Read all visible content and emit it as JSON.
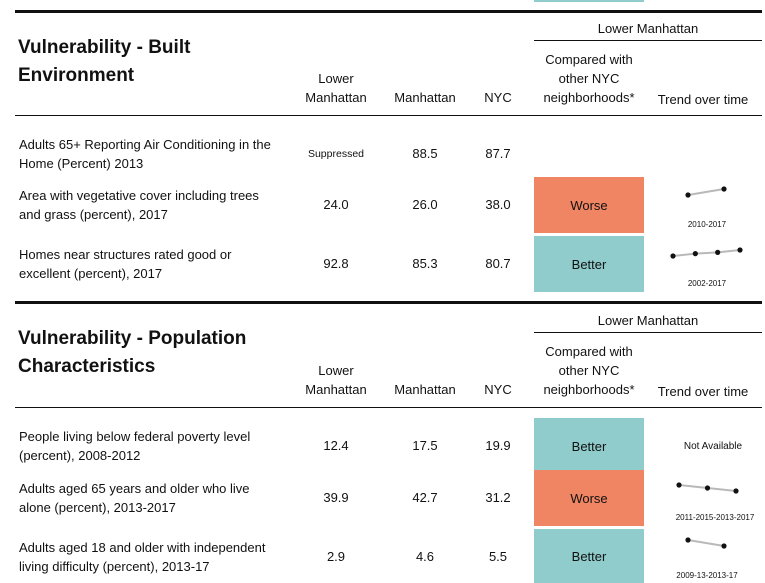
{
  "colors": {
    "worse": "#ef8563",
    "better": "#8fcccb",
    "trend_line": "#b9b9b9",
    "trend_point": "#111111"
  },
  "sections": [
    {
      "title": "Vulnerability - Built Environment",
      "title_line1": "Vulnerability - Built",
      "title_line2": "Environment",
      "group_header": "Lower Manhattan",
      "col_lower": "Lower Manhattan",
      "col_lower_l1": "Lower",
      "col_lower_l2": "Manhattan",
      "col_manhattan": "Manhattan",
      "col_nyc": "NYC",
      "col_compare": "Compared with other NYC neighborhoods*",
      "col_compare_l1": "Compared with",
      "col_compare_l2": "other NYC",
      "col_compare_l3": "neighborhoods*",
      "col_trend": "Trend over time",
      "rows": [
        {
          "label": "Adults 65+ Reporting Air Conditioning in the Home (Percent) 2013",
          "label_l1": "Adults 65+ Reporting Air Conditioning in the",
          "label_l2": "Home (Percent) 2013",
          "lower": "Suppressed",
          "manhattan": "88.5",
          "nyc": "87.7",
          "compare": "",
          "trend_label": "",
          "trend_points": []
        },
        {
          "label": "Area with vegetative cover including trees and grass (percent), 2017",
          "label_l1": "Area with vegetative cover including trees",
          "label_l2": "and grass (percent), 2017",
          "lower": "24.0",
          "manhattan": "26.0",
          "nyc": "38.0",
          "compare": "Worse",
          "trend_label": "2010-2017",
          "trend_points": [
            23.5,
            24.0
          ]
        },
        {
          "label": "Homes near structures rated good or excellent (percent), 2017",
          "label_l1": "Homes near structures rated good or",
          "label_l2": "excellent (percent), 2017",
          "lower": "92.8",
          "manhattan": "85.3",
          "nyc": "80.7",
          "compare": "Better",
          "trend_label": "2002-2017",
          "trend_points": [
            92.3,
            92.5,
            92.6,
            92.8
          ]
        }
      ]
    },
    {
      "title": "Vulnerability - Population Characteristics",
      "title_line1": "Vulnerability - Population",
      "title_line2": "Characteristics",
      "group_header": "Lower Manhattan",
      "col_lower": "Lower Manhattan",
      "col_lower_l1": "Lower",
      "col_lower_l2": "Manhattan",
      "col_manhattan": "Manhattan",
      "col_nyc": "NYC",
      "col_compare": "Compared with other NYC neighborhoods*",
      "col_compare_l1": "Compared with",
      "col_compare_l2": "other NYC",
      "col_compare_l3": "neighborhoods*",
      "col_trend": "Trend over time",
      "rows": [
        {
          "label": "People living below federal poverty level (percent), 2008-2012",
          "label_l1": "People living below federal poverty level",
          "label_l2": "(percent), 2008-2012",
          "lower": "12.4",
          "manhattan": "17.5",
          "nyc": "19.9",
          "compare": "Better",
          "trend_label": "Not Available",
          "trend_points": []
        },
        {
          "label": "Adults aged 65 years and older who live alone (percent), 2013-2017",
          "label_l1": "Adults aged 65 years and older who live",
          "label_l2": "alone (percent), 2013-2017",
          "lower": "39.9",
          "manhattan": "42.7",
          "nyc": "31.2",
          "compare": "Worse",
          "trend_label": "2011-2015-2013-2017",
          "trend_points": [
            40.3,
            40.1,
            39.9
          ]
        },
        {
          "label": "Adults aged 18 and older with independent living difficulty (percent), 2013-17",
          "label_l1": "Adults aged 18 and older with independent",
          "label_l2": "living difficulty (percent), 2013-17",
          "lower": "2.9",
          "manhattan": "4.6",
          "nyc": "5.5",
          "compare": "Better",
          "trend_label": "2009-13-2013-17",
          "trend_points": [
            3.0,
            2.9
          ]
        }
      ]
    }
  ]
}
